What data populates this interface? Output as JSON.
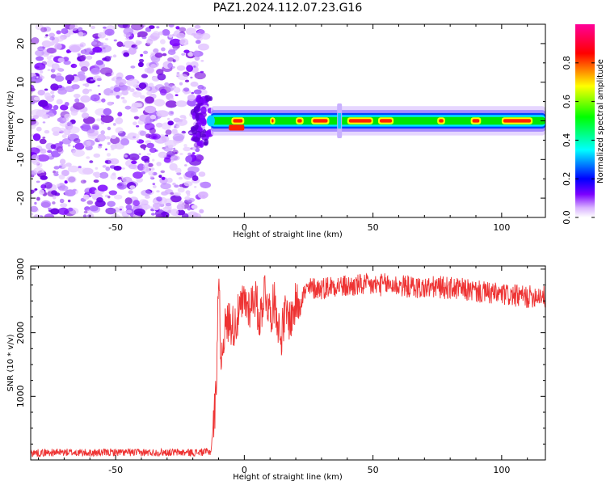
{
  "title": "PAZ1.2024.112.07.23.G16",
  "chart_data": [
    {
      "type": "heatmap",
      "xlabel": "Height of straight line (km)",
      "ylabel": "Frequency (Hz)",
      "xlim": [
        -83,
        117
      ],
      "ylim": [
        -25,
        25
      ],
      "xticks": [
        -50,
        0,
        50,
        100
      ],
      "yticks": [
        -20,
        -10,
        0,
        10,
        20
      ],
      "colorbar": {
        "label": "Normalized spectral amplitude",
        "ticks": [
          "0.0",
          "0.2",
          "0.4",
          "0.6",
          "0.8"
        ],
        "range": [
          0,
          1
        ],
        "colormap": [
          "#ffffff",
          "#7b00ff",
          "#0000ff",
          "#00ffff",
          "#00ff00",
          "#ffff00",
          "#ff0000",
          "#ff00aa"
        ]
      },
      "features": {
        "noise_region_x": [
          -83,
          -15
        ],
        "signal_start_x": -13,
        "line_frequency_hz": 0,
        "spike_x": 37
      }
    },
    {
      "type": "line",
      "xlabel": "Height of straight line (km)",
      "ylabel": "SNR (10 * v/v)",
      "xlim": [
        -83,
        117
      ],
      "ylim": [
        0,
        3050
      ],
      "xticks": [
        -50,
        0,
        50,
        100
      ],
      "yticks": [
        1000,
        2000,
        3000
      ],
      "color": "#ee3333",
      "series": [
        {
          "x": [
            -83,
            -70,
            -60,
            -50,
            -40,
            -30,
            -20,
            -13,
            -11,
            -10,
            -9,
            -8,
            -6,
            -4,
            -2,
            0,
            2,
            4,
            6,
            8,
            10,
            12,
            14,
            16,
            18,
            20,
            22,
            24,
            26,
            30,
            35,
            40,
            45,
            50,
            55,
            60,
            65,
            70,
            75,
            80,
            85,
            90,
            95,
            100,
            105,
            110,
            115,
            117
          ],
          "values": [
            110,
            120,
            110,
            120,
            115,
            120,
            115,
            130,
            1000,
            2950,
            1500,
            2000,
            2200,
            2100,
            2300,
            2500,
            2400,
            2600,
            2200,
            2700,
            2300,
            2500,
            1900,
            2300,
            2200,
            2450,
            2550,
            2650,
            2700,
            2700,
            2750,
            2720,
            2750,
            2740,
            2760,
            2740,
            2720,
            2700,
            2720,
            2700,
            2680,
            2650,
            2620,
            2600,
            2580,
            2560,
            2600,
            2550
          ]
        }
      ]
    }
  ]
}
